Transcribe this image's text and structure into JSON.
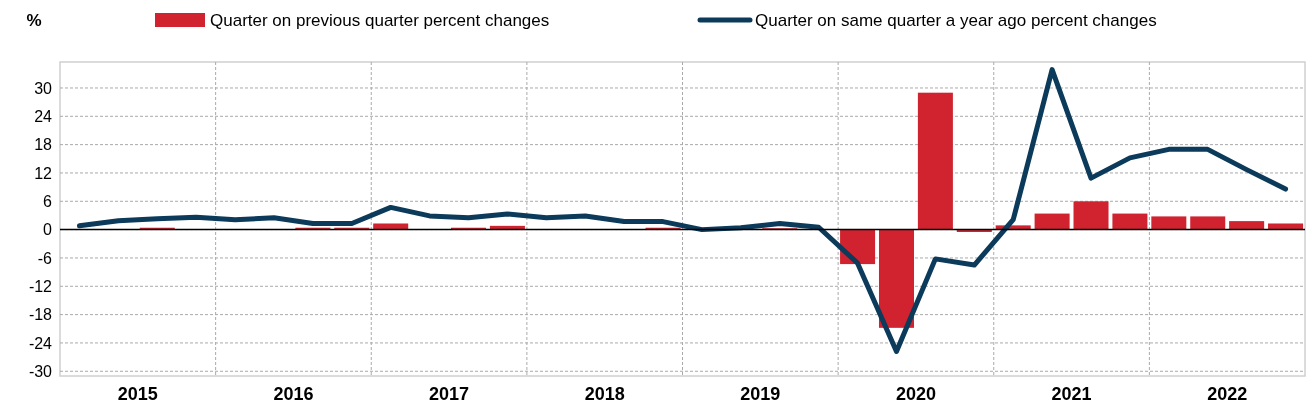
{
  "chart_data": {
    "type": "bar",
    "ylabel": "%",
    "legend": "top",
    "x": [
      2015.125,
      2015.375,
      2015.625,
      2015.875,
      2016.125,
      2016.375,
      2016.625,
      2016.875,
      2017.125,
      2017.375,
      2017.625,
      2017.875,
      2018.125,
      2018.375,
      2018.625,
      2018.875,
      2019.125,
      2019.375,
      2019.625,
      2019.875,
      2020.125,
      2020.375,
      2020.625,
      2020.875,
      2021.125,
      2021.375,
      2021.625,
      2021.875,
      2022.125,
      2022.375,
      2022.625,
      2022.875
    ],
    "xlim": [
      2015,
      2023
    ],
    "xticks": [
      {
        "value": 2015.5,
        "label": "2015"
      },
      {
        "value": 2016,
        "label": null
      },
      {
        "value": 2016.5,
        "label": "2016"
      },
      {
        "value": 2017,
        "label": null
      },
      {
        "value": 2017.5,
        "label": "2017"
      },
      {
        "value": 2018,
        "label": null
      },
      {
        "value": 2018.5,
        "label": "2018"
      },
      {
        "value": 2019,
        "label": null
      },
      {
        "value": 2019.5,
        "label": "2019"
      },
      {
        "value": 2020,
        "label": null
      },
      {
        "value": 2020.5,
        "label": "2020"
      },
      {
        "value": 2021,
        "label": null
      },
      {
        "value": 2021.5,
        "label": "2021"
      },
      {
        "value": 2022,
        "label": null
      },
      {
        "value": 2022.5,
        "label": "2022"
      }
    ],
    "ylim": [
      -31,
      35.5
    ],
    "yticks": [
      -30,
      -24,
      -18,
      -12,
      -6,
      0,
      6,
      12,
      18,
      24,
      30
    ],
    "grid": true,
    "series": [
      {
        "name": "Quarter on previous quarter percent changes",
        "color": "#d0232f",
        "values": [
          0,
          0,
          0.4,
          0,
          0,
          0,
          0.4,
          0.4,
          1.3,
          0,
          0.4,
          0.8,
          0,
          0,
          0,
          0.4,
          0,
          0,
          0.3,
          0,
          -7.3,
          -20.8,
          29,
          -0.5,
          0.9,
          3.4,
          6,
          3.4,
          2.8,
          2.8,
          1.8,
          1.3
        ]
      },
      {
        "name": "Quarter on same quarter a year ago percent changes",
        "type": "line",
        "color": "#0b3a5a",
        "values": [
          0.8,
          1.9,
          2.3,
          2.6,
          2.1,
          2.5,
          1.3,
          1.3,
          4.7,
          2.9,
          2.5,
          3.3,
          2.5,
          2.9,
          1.7,
          1.7,
          0,
          0.4,
          1.3,
          0.5,
          -7.1,
          -25.8,
          -6.2,
          -7.5,
          2.1,
          33.9,
          10.9,
          15.2,
          17,
          17,
          12.7,
          8.6
        ]
      }
    ]
  }
}
